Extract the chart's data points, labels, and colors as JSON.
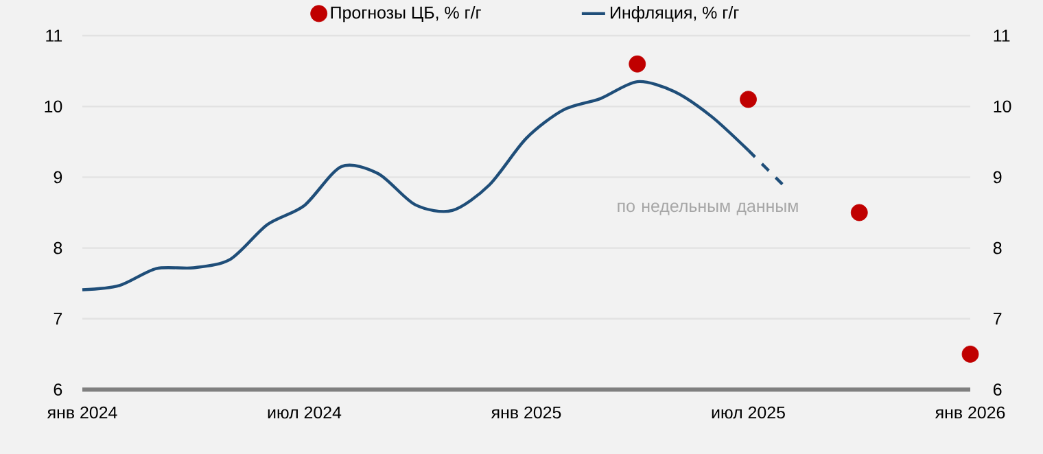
{
  "chart_data": {
    "type": "line",
    "xlim": [
      "2024-01",
      "2026-01"
    ],
    "xticks": [
      {
        "value": "2024-01",
        "label": "янв 2024"
      },
      {
        "value": "2024-07",
        "label": "июл 2024"
      },
      {
        "value": "2025-01",
        "label": "янв 2025"
      },
      {
        "value": "2025-07",
        "label": "июл 2025"
      },
      {
        "value": "2026-01",
        "label": "янв 2026"
      }
    ],
    "ylim": [
      6,
      11
    ],
    "yticks": [
      6,
      7,
      8,
      9,
      10,
      11
    ],
    "y2lim": [
      6,
      11
    ],
    "y2ticks": [
      6,
      7,
      8,
      9,
      10,
      11
    ],
    "grid": "y",
    "legend": "top",
    "marker": "none",
    "line_style": "solid",
    "series": [
      {
        "name": "Прогнозы ЦБ, % г/г",
        "type": "scatter",
        "marker": "circle",
        "color": "#c00000",
        "x": [
          "2025-04",
          "2025-07",
          "2025-10",
          "2026-01"
        ],
        "values": [
          10.6,
          10.1,
          8.5,
          6.5
        ]
      },
      {
        "name": "Инфляция, % г/г",
        "color": "#1f4e79",
        "x": [
          "2024-01",
          "2024-02",
          "2024-03",
          "2024-04",
          "2024-05",
          "2024-06",
          "2024-07",
          "2024-08",
          "2024-09",
          "2024-10",
          "2024-11",
          "2024-12",
          "2025-01",
          "2025-02",
          "2025-03",
          "2025-04",
          "2025-05",
          "2025-06",
          "2025-07"
        ],
        "values": [
          7.41,
          7.47,
          7.71,
          7.72,
          7.84,
          8.33,
          8.6,
          9.15,
          9.05,
          8.61,
          8.53,
          8.89,
          9.55,
          9.95,
          10.11,
          10.35,
          10.21,
          9.86,
          9.38
        ]
      },
      {
        "line_style": "dashed",
        "color": "#1f4e79",
        "x": [
          "2025-07",
          "2025-08"
        ],
        "values": [
          9.38,
          8.86
        ]
      }
    ],
    "annotations": [
      "по недельным данным"
    ]
  }
}
